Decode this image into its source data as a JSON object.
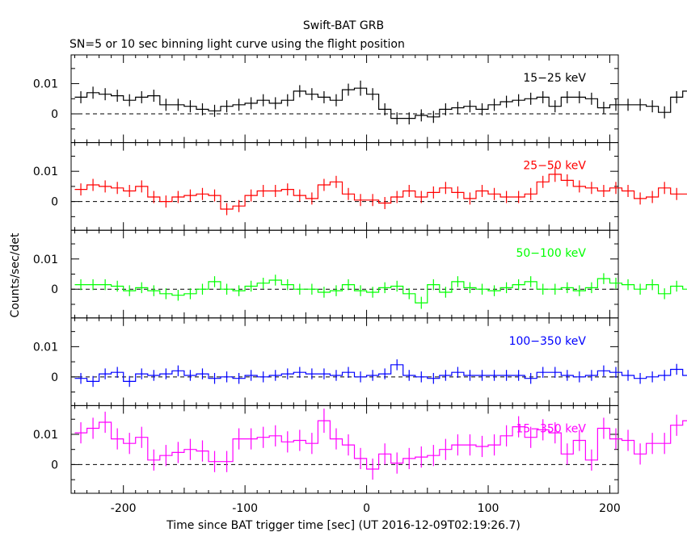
{
  "title": "Swift-BAT GRB",
  "subtitle": "SN=5 or 10 sec binning light curve using the flight position",
  "xlabel": "Time since BAT trigger time [sec] (UT 2016-12-09T02:19:26.7)",
  "ylabel": "Counts/sec/det",
  "x_ticks": [
    "-200",
    "-100",
    "0",
    "100",
    "200"
  ],
  "y_ticks": [
    "0",
    "0.01"
  ],
  "chart_data": {
    "type": "line",
    "xlim": [
      -243,
      207
    ],
    "ylim": [
      -0.0095,
      0.0195
    ],
    "bin_width_sec": 10,
    "x_start_sec": -240,
    "panels": [
      {
        "name": "15−25 keV",
        "color": "#000000",
        "values": [
          0.0055,
          0.007,
          0.0065,
          0.006,
          0.0045,
          0.0055,
          0.006,
          0.003,
          0.003,
          0.0025,
          0.0015,
          0.001,
          0.0025,
          0.003,
          0.0035,
          0.0045,
          0.0035,
          0.0045,
          0.0075,
          0.0065,
          0.0055,
          0.0045,
          0.008,
          0.0085,
          0.0065,
          0.0015,
          -0.0015,
          -0.0015,
          -0.0005,
          -0.001,
          0.0015,
          0.002,
          0.0025,
          0.0015,
          0.003,
          0.004,
          0.0045,
          0.005,
          0.0055,
          0.0025,
          0.0055,
          0.0055,
          0.005,
          0.002,
          0.003,
          0.003,
          0.003,
          0.0025,
          0.0005,
          0.0055,
          0.0075,
          0.0055
        ],
        "errors": [
          0.002,
          0.002,
          0.002,
          0.002,
          0.002,
          0.002,
          0.002,
          0.002,
          0.002,
          0.002,
          0.002,
          0.002,
          0.002,
          0.002,
          0.002,
          0.002,
          0.002,
          0.002,
          0.002,
          0.002,
          0.002,
          0.002,
          0.002,
          0.0025,
          0.002,
          0.002,
          0.002,
          0.002,
          0.002,
          0.002,
          0.002,
          0.002,
          0.002,
          0.002,
          0.002,
          0.002,
          0.002,
          0.002,
          0.002,
          0.002,
          0.002,
          0.002,
          0.002,
          0.002,
          0.002,
          0.002,
          0.002,
          0.002,
          0.002,
          0.002,
          0.0025,
          0.002
        ]
      },
      {
        "name": "25−50 keV",
        "color": "#ff0000",
        "values": [
          0.004,
          0.0055,
          0.005,
          0.0045,
          0.0035,
          0.005,
          0.0015,
          0.0,
          0.0015,
          0.002,
          0.0025,
          0.002,
          -0.0025,
          -0.0015,
          0.002,
          0.0035,
          0.0035,
          0.004,
          0.002,
          0.001,
          0.0055,
          0.0065,
          0.0025,
          0.0005,
          0.0005,
          -0.0005,
          0.0015,
          0.0035,
          0.0015,
          0.003,
          0.0045,
          0.003,
          0.001,
          0.0035,
          0.0025,
          0.0015,
          0.0015,
          0.0025,
          0.0065,
          0.009,
          0.007,
          0.005,
          0.0045,
          0.0035,
          0.0045,
          0.0035,
          0.001,
          0.0015,
          0.0045,
          0.0025,
          0.0025,
          0.0025,
          0.003,
          0.0035,
          0.0055,
          0.0065
        ],
        "errors": [
          0.002,
          0.002,
          0.002,
          0.002,
          0.002,
          0.002,
          0.002,
          0.002,
          0.002,
          0.002,
          0.002,
          0.002,
          0.002,
          0.002,
          0.002,
          0.002,
          0.002,
          0.002,
          0.002,
          0.002,
          0.002,
          0.002,
          0.002,
          0.002,
          0.002,
          0.002,
          0.002,
          0.002,
          0.002,
          0.002,
          0.002,
          0.002,
          0.002,
          0.002,
          0.002,
          0.002,
          0.002,
          0.002,
          0.002,
          0.0025,
          0.002,
          0.002,
          0.002,
          0.002,
          0.002,
          0.002,
          0.002,
          0.002,
          0.002,
          0.002,
          0.002,
          0.002,
          0.002,
          0.002,
          0.002,
          0.002
        ]
      },
      {
        "name": "50−100 keV",
        "color": "#00ff00",
        "values": [
          0.0015,
          0.0015,
          0.0015,
          0.001,
          -0.0005,
          0.0005,
          -0.0005,
          -0.0015,
          -0.002,
          -0.0015,
          0.0,
          0.0025,
          0.0,
          -0.0005,
          0.001,
          0.002,
          0.003,
          0.0015,
          0.0,
          0.0,
          -0.001,
          -0.0005,
          0.0015,
          -0.0005,
          -0.001,
          0.0005,
          0.001,
          -0.0015,
          -0.0045,
          0.0015,
          -0.001,
          0.0025,
          0.0005,
          0.0,
          -0.0005,
          0.0005,
          0.0015,
          0.0025,
          0.0,
          0.0,
          0.0005,
          -0.0005,
          0.0005,
          0.0035,
          0.002,
          0.0015,
          0.0,
          0.0015,
          -0.0015,
          0.001,
          0.0,
          0.0025
        ],
        "errors": [
          0.0018,
          0.0018,
          0.0018,
          0.0018,
          0.0018,
          0.0018,
          0.0018,
          0.0018,
          0.0018,
          0.0018,
          0.0018,
          0.0018,
          0.0018,
          0.0018,
          0.0018,
          0.0018,
          0.0018,
          0.0018,
          0.0018,
          0.0018,
          0.0018,
          0.0018,
          0.0018,
          0.0018,
          0.0018,
          0.0018,
          0.0018,
          0.0018,
          0.002,
          0.0018,
          0.0018,
          0.0018,
          0.0018,
          0.0018,
          0.0018,
          0.0018,
          0.0018,
          0.0018,
          0.0018,
          0.0018,
          0.0018,
          0.0018,
          0.0018,
          0.0018,
          0.0018,
          0.0018,
          0.0018,
          0.0018,
          0.0018,
          0.0018,
          0.0018,
          0.0018
        ]
      },
      {
        "name": "100−350 keV",
        "color": "#0000ff",
        "values": [
          -0.0005,
          -0.0015,
          0.001,
          0.0015,
          -0.0015,
          0.001,
          0.0005,
          0.001,
          0.002,
          0.0005,
          0.001,
          -0.0005,
          0.0,
          -0.0005,
          0.0005,
          0.0,
          0.0005,
          0.001,
          0.0015,
          0.001,
          0.001,
          0.0005,
          0.0015,
          0.0,
          0.0005,
          0.001,
          0.004,
          0.0005,
          0.0,
          -0.0005,
          0.0005,
          0.0015,
          0.0005,
          0.0005,
          0.0005,
          0.0005,
          0.0005,
          -0.0005,
          0.0015,
          0.0015,
          0.0005,
          0.0,
          0.0005,
          0.002,
          0.0015,
          0.0005,
          -0.0005,
          0.0,
          0.0005,
          0.0025,
          0.0005
        ],
        "errors": [
          0.0018,
          0.0018,
          0.0018,
          0.0018,
          0.0018,
          0.0018,
          0.0018,
          0.0018,
          0.0018,
          0.0018,
          0.0018,
          0.0018,
          0.0018,
          0.0018,
          0.0018,
          0.0018,
          0.0018,
          0.0018,
          0.0018,
          0.0018,
          0.0018,
          0.0018,
          0.0018,
          0.0018,
          0.0018,
          0.0018,
          0.0018,
          0.0018,
          0.0018,
          0.0018,
          0.0018,
          0.0018,
          0.0018,
          0.0018,
          0.0018,
          0.0018,
          0.0018,
          0.0018,
          0.0018,
          0.0018,
          0.0018,
          0.0018,
          0.0018,
          0.0018,
          0.0018,
          0.0018,
          0.0018,
          0.0018,
          0.0018,
          0.0018,
          0.0018
        ]
      },
      {
        "name": "15−350 keV",
        "color": "#ff00ff",
        "values": [
          0.0105,
          0.012,
          0.014,
          0.0085,
          0.007,
          0.009,
          0.0015,
          0.003,
          0.004,
          0.005,
          0.0045,
          0.001,
          0.001,
          0.0085,
          0.0085,
          0.009,
          0.0095,
          0.0075,
          0.008,
          0.007,
          0.0145,
          0.0085,
          0.0065,
          0.002,
          -0.0015,
          0.0035,
          0.0005,
          0.002,
          0.0025,
          0.003,
          0.005,
          0.0065,
          0.0065,
          0.006,
          0.0065,
          0.0095,
          0.0125,
          0.009,
          0.0115,
          0.0105,
          0.0035,
          0.008,
          0.0015,
          0.012,
          0.0085,
          0.008,
          0.0035,
          0.007,
          0.007,
          0.013,
          0.0145
        ],
        "errors": [
          0.0035,
          0.0035,
          0.0035,
          0.0035,
          0.0035,
          0.0035,
          0.0035,
          0.0035,
          0.0035,
          0.0035,
          0.0035,
          0.0035,
          0.0035,
          0.0035,
          0.0035,
          0.0035,
          0.0035,
          0.0035,
          0.0035,
          0.0035,
          0.004,
          0.0035,
          0.0035,
          0.0035,
          0.0035,
          0.0035,
          0.0035,
          0.0035,
          0.0035,
          0.0035,
          0.0035,
          0.0035,
          0.0035,
          0.0035,
          0.0035,
          0.0035,
          0.0035,
          0.0035,
          0.0035,
          0.0035,
          0.0035,
          0.0035,
          0.0035,
          0.0035,
          0.0035,
          0.0035,
          0.0035,
          0.0035,
          0.0035,
          0.0035,
          0.0035
        ]
      }
    ]
  }
}
